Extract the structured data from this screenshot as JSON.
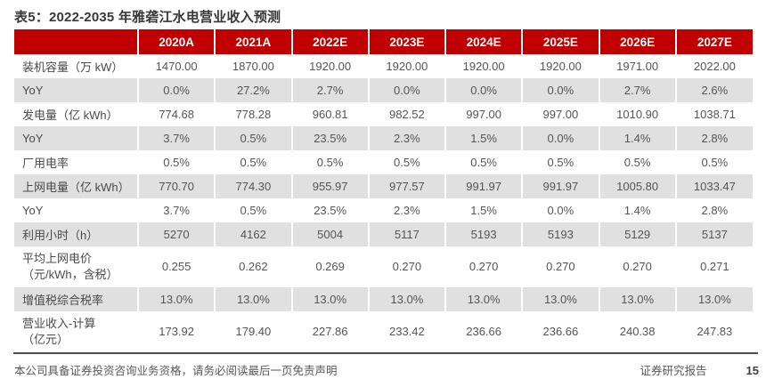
{
  "page": {
    "title": "表5：2022-2035 年雅砻江水电营业收入预测",
    "footer_disclaimer": "本公司具备证券投资咨询业务资格，请务必阅读最后一页免责声明",
    "footer_report_type": "证券研究报告",
    "page_number": "15"
  },
  "colors": {
    "header_bg": "#c00000",
    "stripe_bg": "#e0e0e0",
    "text": "#555555",
    "divider": "#4d4d4d"
  },
  "table": {
    "columns": [
      "",
      "2020A",
      "2021A",
      "2022E",
      "2023E",
      "2024E",
      "2025E",
      "2026E",
      "2027E"
    ],
    "rows": [
      {
        "label": "装机容量（万 kW）",
        "values": [
          "1470.00",
          "1870.00",
          "1920.00",
          "1920.00",
          "1920.00",
          "1920.00",
          "1971.00",
          "2022.00"
        ]
      },
      {
        "label": "YoY",
        "values": [
          "0.0%",
          "27.2%",
          "2.7%",
          "0.0%",
          "0.0%",
          "0.0%",
          "2.7%",
          "2.6%"
        ]
      },
      {
        "label": "发电量（亿 kWh）",
        "values": [
          "774.68",
          "778.28",
          "960.81",
          "982.52",
          "997.00",
          "997.00",
          "1010.90",
          "1038.71"
        ]
      },
      {
        "label": "YoY",
        "values": [
          "3.7%",
          "0.5%",
          "23.5%",
          "2.3%",
          "1.5%",
          "0.0%",
          "1.4%",
          "2.8%"
        ]
      },
      {
        "label": "厂用电率",
        "values": [
          "0.5%",
          "0.5%",
          "0.5%",
          "0.5%",
          "0.5%",
          "0.5%",
          "0.5%",
          "0.5%"
        ]
      },
      {
        "label": "上网电量（亿 kWh）",
        "values": [
          "770.70",
          "774.30",
          "955.97",
          "977.57",
          "991.97",
          "991.97",
          "1005.80",
          "1033.47"
        ]
      },
      {
        "label": "YoY",
        "values": [
          "3.7%",
          "0.5%",
          "23.5%",
          "2.3%",
          "1.5%",
          "0.0%",
          "1.4%",
          "2.8%"
        ]
      },
      {
        "label": "利用小时（h）",
        "values": [
          "5270",
          "4162",
          "5004",
          "5117",
          "5193",
          "5193",
          "5129",
          "5137"
        ]
      },
      {
        "label": "平均上网电价",
        "label_line2": "（元/kWh，含税）",
        "values": [
          "0.255",
          "0.262",
          "0.269",
          "0.270",
          "0.270",
          "0.270",
          "0.270",
          "0.271"
        ]
      },
      {
        "label": "增值税综合税率",
        "values": [
          "13.0%",
          "13.0%",
          "13.0%",
          "13.0%",
          "13.0%",
          "13.0%",
          "13.0%",
          "13.0%"
        ]
      },
      {
        "label": "营业收入-计算",
        "label_line2": "（亿元）",
        "values": [
          "173.92",
          "179.40",
          "227.86",
          "233.42",
          "236.66",
          "236.66",
          "240.38",
          "247.83"
        ]
      }
    ]
  }
}
